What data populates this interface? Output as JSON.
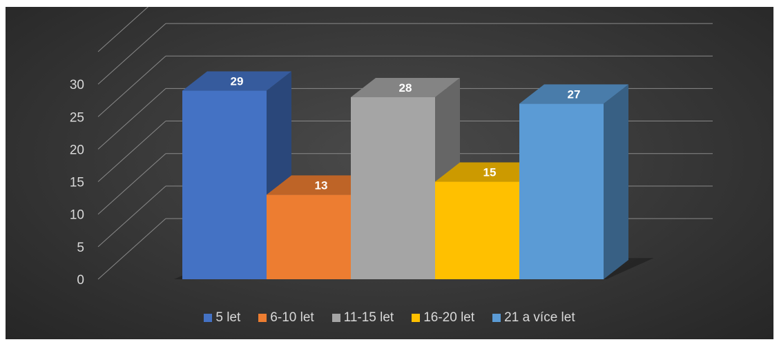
{
  "chart_data": {
    "type": "bar",
    "style": "3d-column",
    "categories": [
      "5 let",
      "6-10 let",
      "11-15 let",
      "16-20 let",
      "21 a více let"
    ],
    "values": [
      29,
      13,
      28,
      15,
      27
    ],
    "colors": [
      "#4472c4",
      "#ed7d31",
      "#a5a5a5",
      "#ffc000",
      "#5b9bd5"
    ],
    "ylim": [
      0,
      35
    ],
    "yticks": [
      "0",
      "5",
      "10",
      "15",
      "20",
      "25",
      "30"
    ],
    "data_labels": [
      "29",
      "13",
      "28",
      "15",
      "27"
    ],
    "legend": [
      "5 let",
      "6-10 let",
      "11-15 let",
      "16-20 let",
      "21 a více let"
    ],
    "legend_position": "bottom",
    "grid": true,
    "background": "#3a3a3a",
    "title": "",
    "xlabel": "",
    "ylabel": ""
  }
}
